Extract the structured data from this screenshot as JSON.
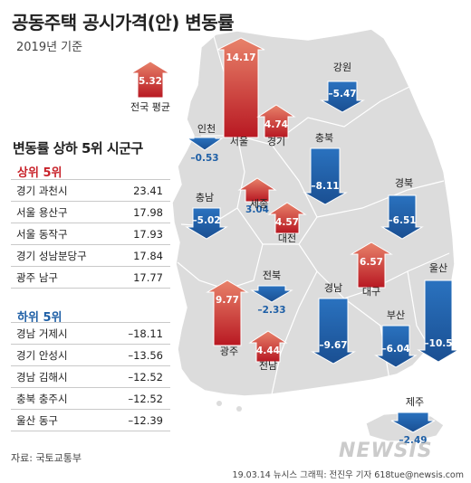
{
  "title": "공동주택 공시가격(안) 변동률",
  "subtitle": "2019년 기준",
  "regions": [
    {
      "name": "전국 평균",
      "value": 5.32
    },
    {
      "name": "서울",
      "value": 14.17
    },
    {
      "name": "경기",
      "value": 4.74
    },
    {
      "name": "인천",
      "value": -0.53
    },
    {
      "name": "강원",
      "value": -5.47
    },
    {
      "name": "충북",
      "value": -8.11
    },
    {
      "name": "충남",
      "value": -5.02
    },
    {
      "name": "세종",
      "value": 3.04
    },
    {
      "name": "대전",
      "value": 4.57
    },
    {
      "name": "경북",
      "value": -6.51
    },
    {
      "name": "전북",
      "value": -2.33
    },
    {
      "name": "대구",
      "value": 6.57
    },
    {
      "name": "광주",
      "value": 9.77
    },
    {
      "name": "전남",
      "value": 4.44
    },
    {
      "name": "경남",
      "value": -9.67
    },
    {
      "name": "부산",
      "value": -6.04
    },
    {
      "name": "울산",
      "value": -10.5
    },
    {
      "name": "제주",
      "value": -2.49
    }
  ],
  "ranking": {
    "title": "변동률 상하 5위 시군구",
    "top": {
      "label": "상위 5위",
      "rows": [
        {
          "name": "경기  과천시",
          "value": "23.41"
        },
        {
          "name": "서울  용산구",
          "value": "17.98"
        },
        {
          "name": "서울  동작구",
          "value": "17.93"
        },
        {
          "name": "경기  성남분당구",
          "value": "17.84"
        },
        {
          "name": "광주  남구",
          "value": "17.77"
        }
      ]
    },
    "bottom": {
      "label": "하위 5위",
      "rows": [
        {
          "name": "경남  거제시",
          "value": "–18.11"
        },
        {
          "name": "경기  안성시",
          "value": "–13.56"
        },
        {
          "name": "경남  김해시",
          "value": "–12.52"
        },
        {
          "name": "충북  충주시",
          "value": "–12.52"
        },
        {
          "name": "울산  동구",
          "value": "–12.39"
        }
      ]
    }
  },
  "source": "자료: 국토교통부",
  "credit": "19.03.14  뉴시스 그래픽: 전진우 기자  618tue@newsis.com",
  "watermark": "NEWSIS",
  "colors": {
    "up": "#c8222a",
    "up_light": "#e8826a",
    "down": "#1e5fa6",
    "down_light": "#2e7ac8",
    "land": "#dcdcdc",
    "border": "#ffffff"
  }
}
